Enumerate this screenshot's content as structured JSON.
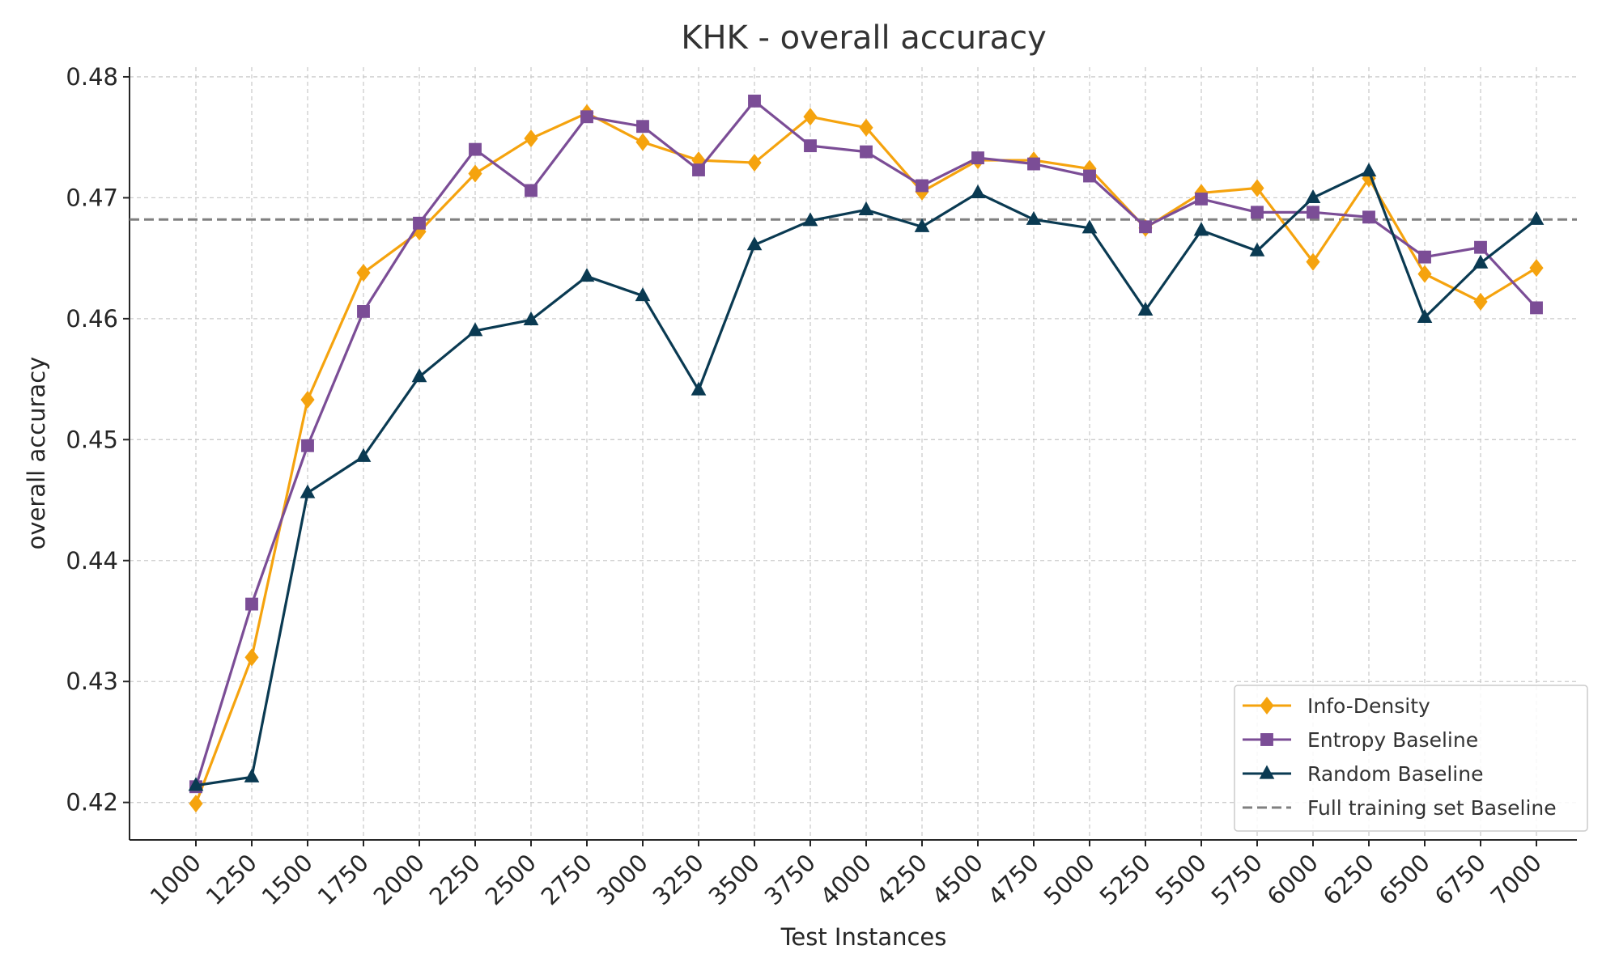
{
  "chart_data": {
    "type": "line",
    "title": "KHK - overall accuracy",
    "xlabel": "Test Instances",
    "ylabel": "overall accuracy",
    "x": [
      1000,
      1250,
      1500,
      1750,
      2000,
      2250,
      2500,
      2750,
      3000,
      3250,
      3500,
      3750,
      4000,
      4250,
      4500,
      4750,
      5000,
      5250,
      5500,
      5750,
      6000,
      6250,
      6500,
      6750,
      7000
    ],
    "x_tick_labels": [
      "1000",
      "1250",
      "1500",
      "1750",
      "2000",
      "2250",
      "2500",
      "2750",
      "3000",
      "3250",
      "3500",
      "3750",
      "4000",
      "4250",
      "4500",
      "4750",
      "5000",
      "5250",
      "5500",
      "5750",
      "6000",
      "6250",
      "6500",
      "6750",
      "7000"
    ],
    "ylim": [
      0.4169,
      0.4808
    ],
    "y_ticks": [
      0.42,
      0.43,
      0.44,
      0.45,
      0.46,
      0.47,
      0.48
    ],
    "y_tick_labels": [
      "0.42",
      "0.43",
      "0.44",
      "0.45",
      "0.46",
      "0.47",
      "0.48"
    ],
    "grid": true,
    "legend_position": "bottom-right",
    "series": [
      {
        "name": "Info-Density",
        "color": "#f5a30e",
        "marker": "diamond",
        "values": [
          0.4199,
          0.432,
          0.4533,
          0.4638,
          0.4672,
          0.472,
          0.4749,
          0.477,
          0.4746,
          0.4731,
          0.4729,
          0.4767,
          0.4758,
          0.4705,
          0.4731,
          0.4731,
          0.4724,
          0.4675,
          0.4704,
          0.4708,
          0.4647,
          0.4716,
          0.4637,
          0.4614,
          0.4642
        ]
      },
      {
        "name": "Entropy Baseline",
        "color": "#7b4d96",
        "marker": "square",
        "values": [
          0.4213,
          0.4364,
          0.4495,
          0.4606,
          0.4679,
          0.474,
          0.4706,
          0.4767,
          0.4759,
          0.4723,
          0.478,
          0.4743,
          0.4738,
          0.471,
          0.4733,
          0.4728,
          0.4718,
          0.4676,
          0.4699,
          0.4688,
          0.4688,
          0.4684,
          0.4651,
          0.4659,
          0.4609
        ]
      },
      {
        "name": "Random Baseline",
        "color": "#0a3a52",
        "marker": "triangle",
        "values": [
          0.4214,
          0.4221,
          0.4456,
          0.4486,
          0.4552,
          0.459,
          0.4599,
          0.4635,
          0.4619,
          0.4541,
          0.4661,
          0.4681,
          0.469,
          0.4676,
          0.4704,
          0.4682,
          0.4675,
          0.4607,
          0.4673,
          0.4656,
          0.47,
          0.4722,
          0.4601,
          0.4646,
          0.4682
        ]
      }
    ],
    "reference_lines": [
      {
        "name": "Full training set Baseline",
        "value": 0.4682,
        "color": "#808080",
        "style": "dashed"
      }
    ]
  }
}
